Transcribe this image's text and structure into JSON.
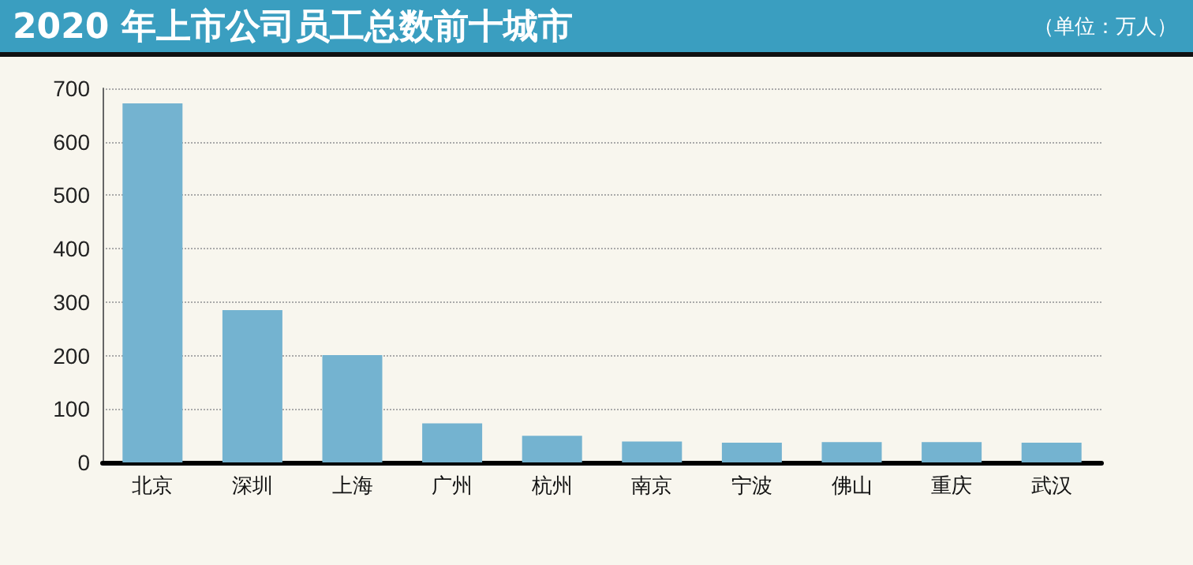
{
  "chart_data": {
    "type": "bar",
    "title": "2020 年上市公司员工总数前十城市",
    "subtitle": "（单位：万人）",
    "categories": [
      "北京",
      "深圳",
      "上海",
      "广州",
      "杭州",
      "南京",
      "宁波",
      "佛山",
      "重庆",
      "武汉"
    ],
    "values": [
      672,
      285,
      201,
      73,
      50,
      39,
      37,
      38,
      38,
      37
    ],
    "color": "#74b3d0",
    "ylim": [
      0,
      700
    ],
    "yticks": [
      0,
      100,
      200,
      300,
      400,
      500,
      600,
      700
    ],
    "grid": "y"
  }
}
